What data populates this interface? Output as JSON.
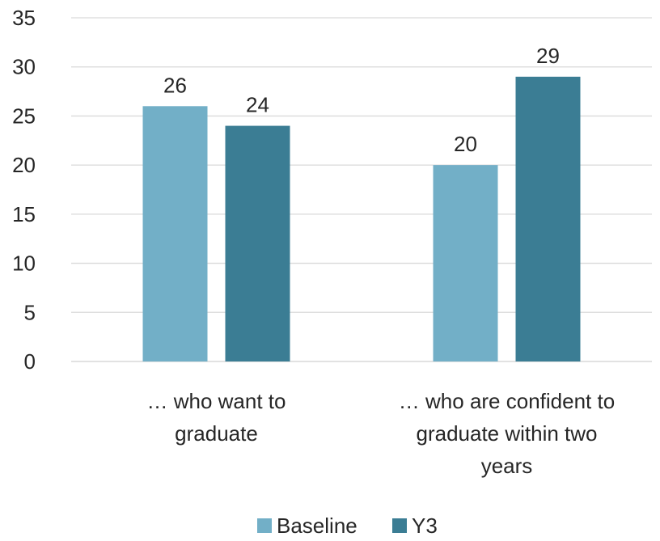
{
  "chart_data": {
    "type": "bar",
    "categories": [
      [
        "… who want to",
        "graduate"
      ],
      [
        "… who are confident to",
        "graduate within two",
        "years"
      ]
    ],
    "series": [
      {
        "name": "Baseline",
        "color": "#72afc7",
        "values": [
          26,
          20
        ]
      },
      {
        "name": "Y3",
        "color": "#3b7d94",
        "values": [
          24,
          29
        ]
      }
    ],
    "yticks": [
      0,
      5,
      10,
      15,
      20,
      25,
      30,
      35
    ],
    "ylim": [
      0,
      35
    ],
    "grid": true,
    "legend_position": "bottom"
  }
}
